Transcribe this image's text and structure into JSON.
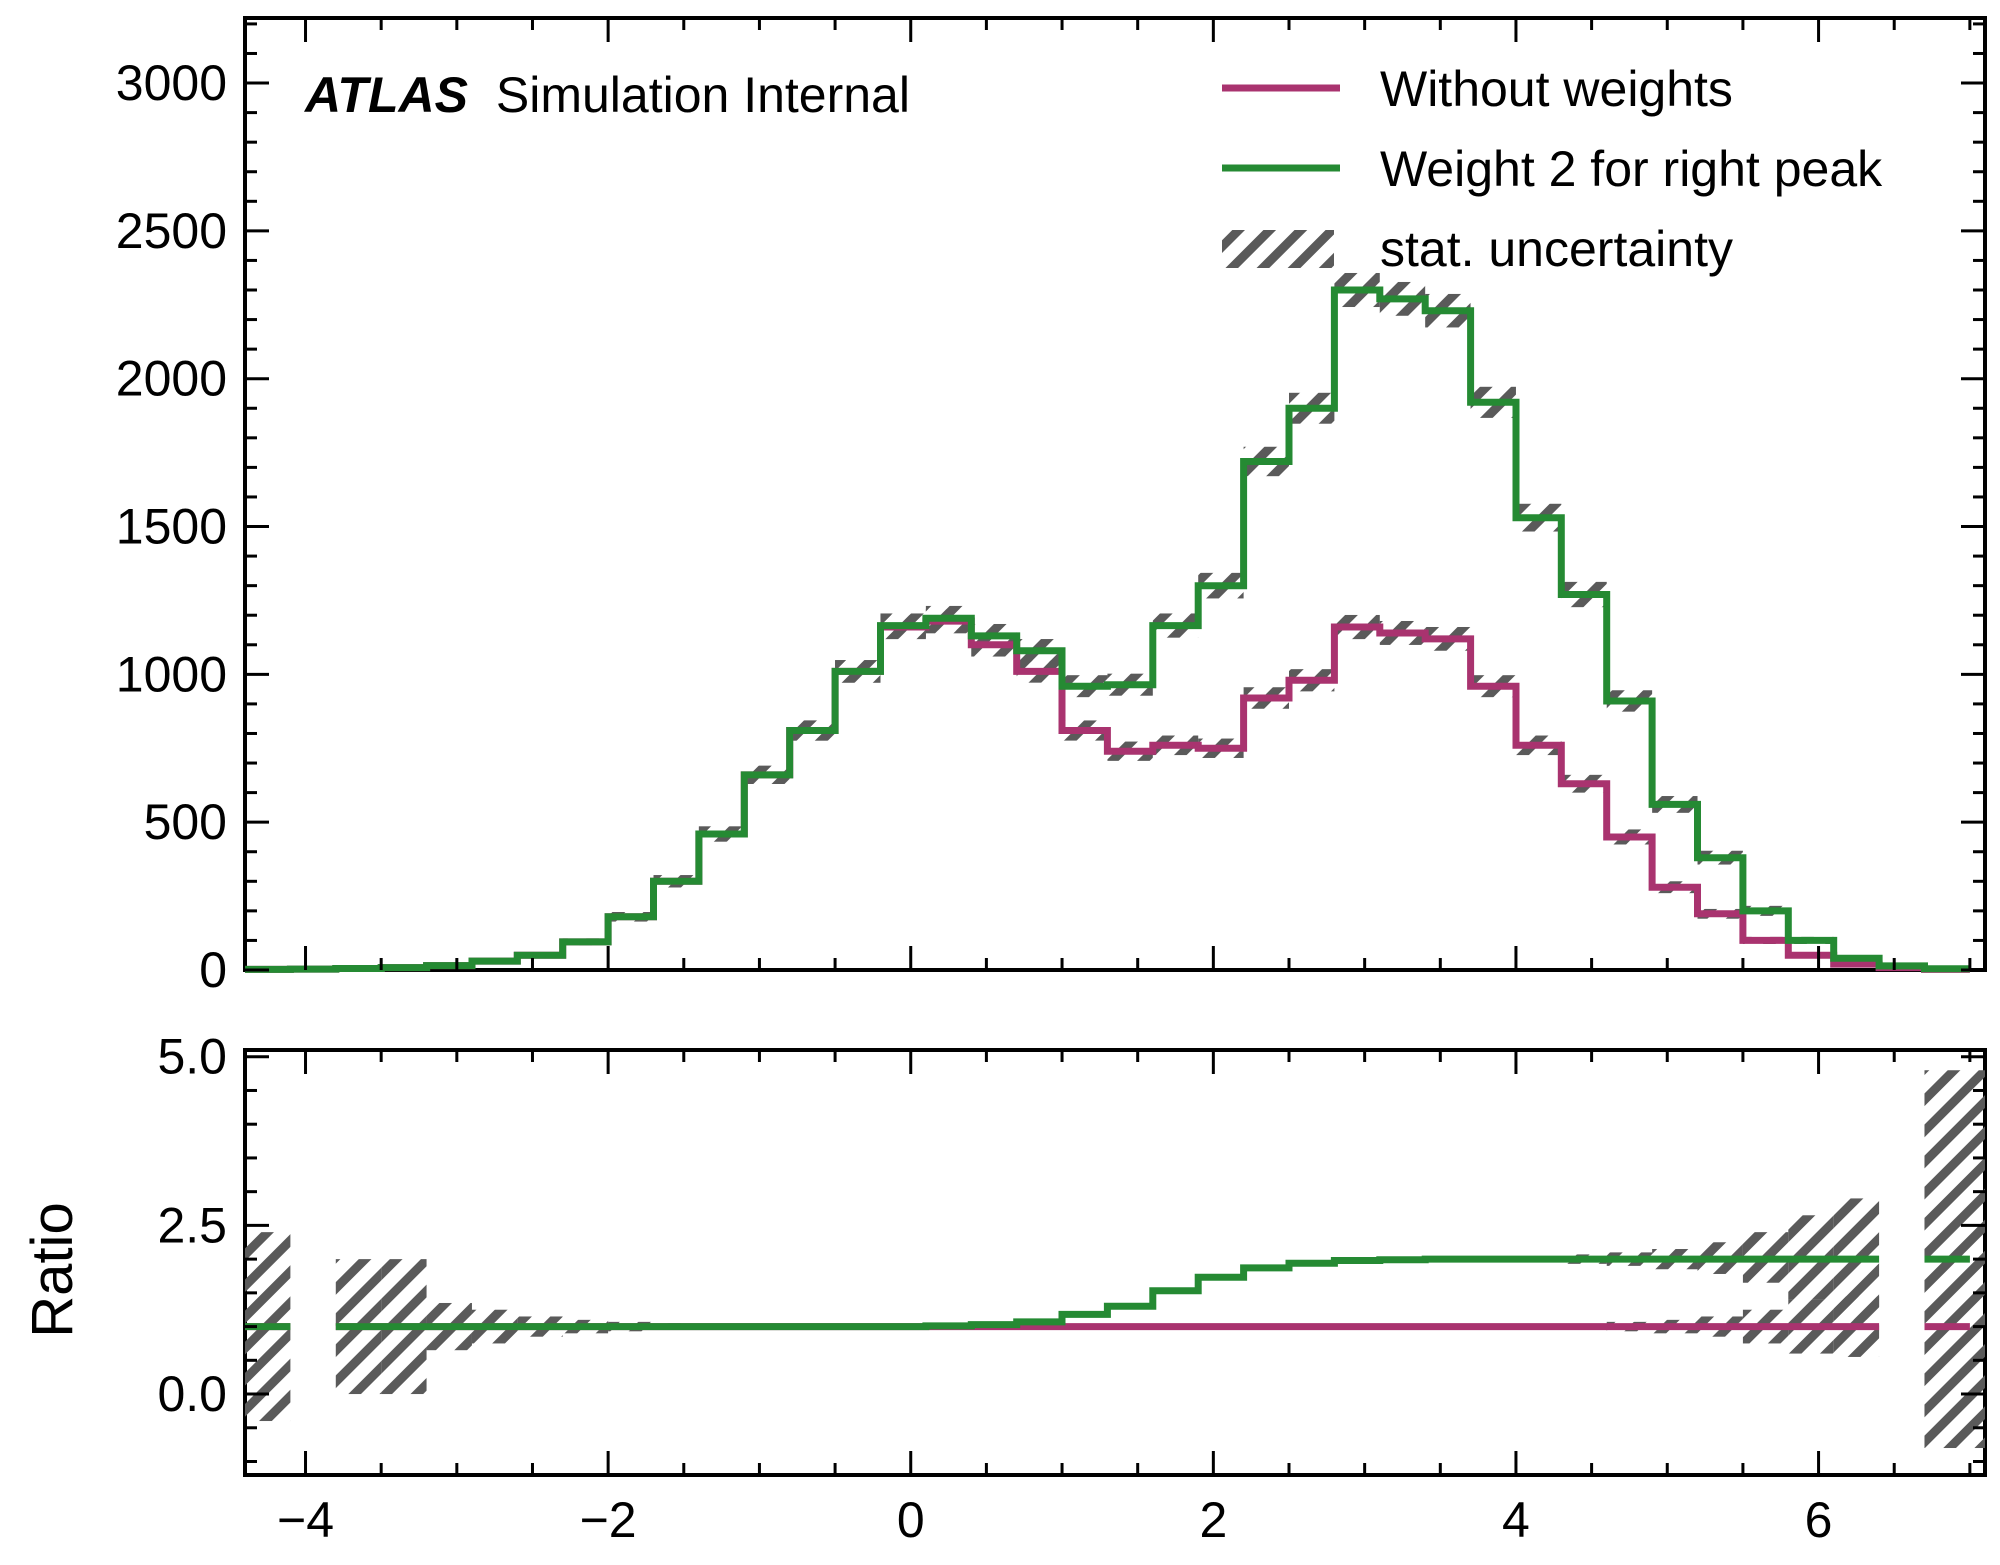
{
  "colors": {
    "without_weights": "#a9336f",
    "weighted": "#258a33",
    "uncertainty": "#555555"
  },
  "chart_data": [
    {
      "type": "line",
      "subtype": "step-histogram",
      "title": "",
      "xlabel": "",
      "ylabel": "",
      "xlim": [
        -4.4,
        7.1
      ],
      "ylim": [
        0,
        3220
      ],
      "xticks": [
        -4,
        -2,
        0,
        2,
        4,
        6
      ],
      "yticks": [
        0,
        500,
        1000,
        1500,
        2000,
        2500,
        3000
      ],
      "ytick_labels": [
        "0",
        "500",
        "1000",
        "1500",
        "2000",
        "2500",
        "3000"
      ],
      "legend_position": "top-right",
      "grid": false,
      "annotation": {
        "bold": "ATLAS",
        "rest": "Simulation Internal"
      },
      "bin_edges": [
        -4.4,
        -4.1,
        -3.8,
        -3.5,
        -3.2,
        -2.9,
        -2.6,
        -2.3,
        -2.0,
        -1.7,
        -1.4,
        -1.1,
        -0.8,
        -0.5,
        -0.2,
        0.1,
        0.4,
        0.7,
        1.0,
        1.3,
        1.6,
        1.9,
        2.2,
        2.5,
        2.8,
        3.1,
        3.4,
        3.7,
        4.0,
        4.3,
        4.6,
        4.9,
        5.2,
        5.5,
        5.8,
        6.1,
        6.4,
        6.7,
        7.0
      ],
      "series": [
        {
          "name": "Without weights",
          "color_key": "without_weights",
          "values": [
            2,
            3,
            5,
            8,
            15,
            30,
            50,
            95,
            180,
            300,
            460,
            660,
            810,
            1010,
            1160,
            1180,
            1100,
            1010,
            810,
            740,
            760,
            750,
            920,
            980,
            1160,
            1140,
            1120,
            960,
            760,
            630,
            450,
            280,
            190,
            100,
            50,
            20,
            8,
            2
          ]
        },
        {
          "name": "Weight 2 for right peak",
          "color_key": "weighted",
          "values": [
            2,
            3,
            5,
            8,
            15,
            30,
            50,
            95,
            180,
            300,
            460,
            660,
            810,
            1010,
            1165,
            1190,
            1130,
            1080,
            960,
            965,
            1165,
            1300,
            1720,
            1900,
            2300,
            2270,
            2230,
            1920,
            1530,
            1270,
            910,
            560,
            380,
            200,
            100,
            40,
            14,
            4
          ]
        }
      ],
      "uncertainty_label": "stat. uncertainty"
    },
    {
      "type": "line",
      "subtype": "ratio-step",
      "title": "",
      "xlabel": "",
      "ylabel": "Ratio",
      "xlim": [
        -4.4,
        7.1
      ],
      "ylim": [
        -1.2,
        5.1
      ],
      "xticks": [
        -4,
        -2,
        0,
        2,
        4,
        6
      ],
      "xtick_labels": [
        "−4",
        "−2",
        "0",
        "2",
        "4",
        "6"
      ],
      "yticks": [
        0.0,
        2.5,
        5.0
      ],
      "ytick_labels": [
        "0.0",
        "2.5",
        "5.0"
      ],
      "bin_edges": [
        -4.4,
        -4.1,
        -3.8,
        -3.5,
        -3.2,
        -2.9,
        -2.6,
        -2.3,
        -2.0,
        -1.7,
        -1.4,
        -1.1,
        -0.8,
        -0.5,
        -0.2,
        0.1,
        0.4,
        0.7,
        1.0,
        1.3,
        1.6,
        1.9,
        2.2,
        2.5,
        2.8,
        3.1,
        3.4,
        3.7,
        4.0,
        4.3,
        4.6,
        4.9,
        5.2,
        5.5,
        5.8,
        6.1,
        6.4,
        6.7,
        7.0
      ],
      "series": [
        {
          "name": "Without weights",
          "color_key": "without_weights",
          "values": [
            1,
            null,
            1,
            1,
            1,
            1,
            1,
            1,
            1,
            1,
            1,
            1,
            1,
            1,
            1,
            1,
            1,
            1,
            1,
            1,
            1,
            1,
            1,
            1,
            1,
            1,
            1,
            1,
            1,
            1,
            1,
            1,
            1,
            1,
            1,
            1,
            null,
            1
          ]
        },
        {
          "name": "Weight 2 for right peak",
          "color_key": "weighted",
          "values": [
            1,
            null,
            1,
            1,
            1,
            1,
            1,
            1,
            1,
            1,
            1,
            1,
            1,
            1,
            1,
            1.01,
            1.03,
            1.07,
            1.18,
            1.3,
            1.53,
            1.73,
            1.87,
            1.94,
            1.98,
            1.99,
            2.0,
            2.0,
            2.0,
            2.0,
            2.0,
            2.0,
            2.0,
            2.0,
            2.0,
            2.0,
            null,
            2.0
          ]
        }
      ],
      "uncertainty": [
        {
          "x0": -4.4,
          "x1": -4.1,
          "lo": -0.4,
          "hi": 2.4
        },
        {
          "x0": -3.8,
          "x1": -3.5,
          "lo": 0.0,
          "hi": 2.0
        },
        {
          "x0": -3.5,
          "x1": -3.2,
          "lo": 0.0,
          "hi": 2.0
        },
        {
          "x0": -3.2,
          "x1": -2.9,
          "lo": 0.65,
          "hi": 1.35
        },
        {
          "x0": -2.9,
          "x1": -2.6,
          "lo": 0.75,
          "hi": 1.25
        },
        {
          "x0": -2.6,
          "x1": -2.3,
          "lo": 0.85,
          "hi": 1.15
        },
        {
          "x0": -2.3,
          "x1": -2.0,
          "lo": 0.9,
          "hi": 1.1
        },
        {
          "x0": -2.0,
          "x1": -1.7,
          "lo": 0.93,
          "hi": 1.07
        },
        {
          "x0": -1.7,
          "x1": -1.4,
          "lo": 0.95,
          "hi": 1.05
        },
        {
          "x0": 4.6,
          "x1": 4.9,
          "lo": 0.93,
          "hi": 1.07
        },
        {
          "x0": 4.9,
          "x1": 5.2,
          "lo": 0.9,
          "hi": 1.1
        },
        {
          "x0": 5.2,
          "x1": 5.5,
          "lo": 0.85,
          "hi": 1.15
        },
        {
          "x0": 5.5,
          "x1": 5.8,
          "lo": 0.75,
          "hi": 1.25
        },
        {
          "x0": 5.8,
          "x1": 6.1,
          "lo": 0.6,
          "hi": 1.4
        },
        {
          "x0": 6.1,
          "x1": 6.4,
          "lo": 0.55,
          "hi": 1.45
        },
        {
          "x0": 6.7,
          "x1": 7.1,
          "lo": -0.8,
          "hi": 4.8
        },
        {
          "x0": 4.3,
          "x1": 4.6,
          "lo": 1.93,
          "hi": 2.07
        },
        {
          "x0": 4.6,
          "x1": 4.9,
          "lo": 1.9,
          "hi": 2.1
        },
        {
          "x0": 4.9,
          "x1": 5.2,
          "lo": 1.85,
          "hi": 2.15
        },
        {
          "x0": 5.2,
          "x1": 5.5,
          "lo": 1.78,
          "hi": 2.25
        },
        {
          "x0": 5.5,
          "x1": 5.8,
          "lo": 1.65,
          "hi": 2.4
        },
        {
          "x0": 5.8,
          "x1": 6.1,
          "lo": 1.4,
          "hi": 2.65
        },
        {
          "x0": 6.1,
          "x1": 6.4,
          "lo": 1.1,
          "hi": 2.9
        }
      ]
    }
  ]
}
